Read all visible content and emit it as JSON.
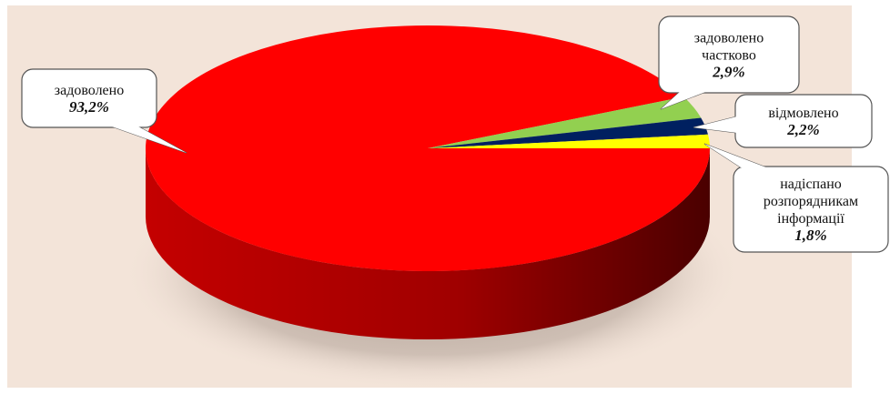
{
  "chart_data": {
    "type": "pie",
    "categories": [
      "задоволено",
      "задоволено частково",
      "відмовлено",
      "надіспано розпорядникам інформації"
    ],
    "values": [
      93.2,
      2.9,
      2.2,
      1.8
    ],
    "labels": [
      {
        "lines": [
          "задоволено"
        ],
        "value": "93,2%"
      },
      {
        "lines": [
          "задоволено",
          "частково"
        ],
        "value": "2,9%"
      },
      {
        "lines": [
          "відмовлено"
        ],
        "value": "2,2%"
      },
      {
        "lines": [
          "надіспано",
          "розпорядникам",
          "інформації"
        ],
        "value": "1,8%"
      }
    ],
    "colors": [
      "#ff0000",
      "#92d050",
      "#002060",
      "#ffff00"
    ],
    "side_colors": [
      "#b00000",
      "#5d8a25",
      "#00113a",
      "#a6a600"
    ],
    "background": "#f3e4d9",
    "title": "",
    "legend": "none"
  }
}
